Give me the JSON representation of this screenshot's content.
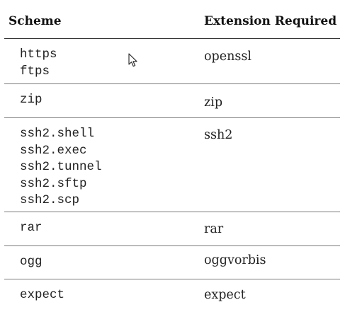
{
  "table": {
    "headers": {
      "scheme": "Scheme",
      "extension": "Extension Required"
    },
    "rows": [
      {
        "schemes": [
          "https",
          "ftps"
        ],
        "extension": "openssl"
      },
      {
        "schemes": [
          "zip"
        ],
        "extension": "zip"
      },
      {
        "schemes": [
          "ssh2.shell",
          "ssh2.exec",
          "ssh2.tunnel",
          "ssh2.sftp",
          "ssh2.scp"
        ],
        "extension": "ssh2"
      },
      {
        "schemes": [
          "rar"
        ],
        "extension": "rar"
      },
      {
        "schemes": [
          "ogg"
        ],
        "extension": "oggvorbis"
      },
      {
        "schemes": [
          "expect"
        ],
        "extension": "expect"
      }
    ]
  },
  "cursor": {
    "icon": "mouse-pointer-icon"
  }
}
